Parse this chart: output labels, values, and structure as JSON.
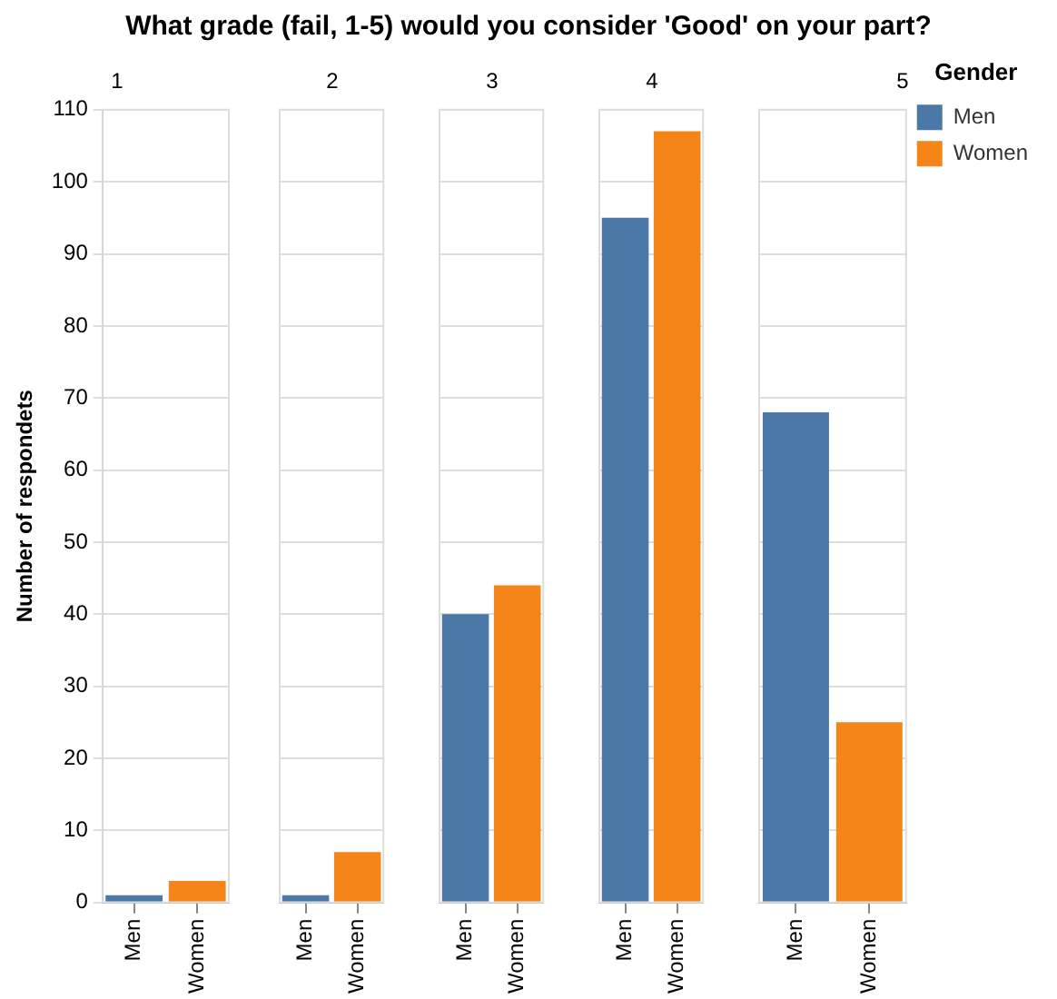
{
  "chart_data": [
    {
      "type": "bar",
      "title": "What grade (fail, 1-5) would you consider 'Good' on your part?",
      "subtitle": "1",
      "ylabel": "Number of respondets",
      "categories": [
        "Men",
        "Women"
      ],
      "series": [
        {
          "color": "#4c78a8",
          "values": [
            1,
            null
          ]
        },
        {
          "color": "#f58518",
          "values": [
            null,
            3
          ]
        }
      ],
      "ylim": [
        0,
        110
      ],
      "yticks": [
        0,
        10,
        20,
        30,
        40,
        50,
        60,
        70,
        80,
        90,
        100,
        110
      ],
      "grid": "y",
      "legend": false
    },
    {
      "type": "bar",
      "subtitle": "2",
      "categories": [
        "Men",
        "Women"
      ],
      "series": [
        {
          "color": "#4c78a8",
          "values": [
            1,
            null
          ]
        },
        {
          "color": "#f58518",
          "values": [
            null,
            7
          ]
        }
      ],
      "ylim": [
        0,
        110
      ],
      "yticks": [
        0,
        10,
        20,
        30,
        40,
        50,
        60,
        70,
        80,
        90,
        100,
        110
      ],
      "grid": "y",
      "legend": false,
      "tick_labels": "x"
    },
    {
      "type": "bar",
      "subtitle": "3",
      "categories": [
        "Men",
        "Women"
      ],
      "series": [
        {
          "color": "#4c78a8",
          "values": [
            40,
            null
          ]
        },
        {
          "color": "#f58518",
          "values": [
            null,
            44
          ]
        }
      ],
      "ylim": [
        0,
        110
      ],
      "yticks": [
        0,
        10,
        20,
        30,
        40,
        50,
        60,
        70,
        80,
        90,
        100,
        110
      ],
      "grid": "y",
      "legend": false,
      "tick_labels": "x"
    },
    {
      "type": "bar",
      "subtitle": "4",
      "categories": [
        "Men",
        "Women"
      ],
      "series": [
        {
          "color": "#4c78a8",
          "values": [
            95,
            null
          ]
        },
        {
          "color": "#f58518",
          "values": [
            null,
            107
          ]
        }
      ],
      "ylim": [
        0,
        110
      ],
      "yticks": [
        0,
        10,
        20,
        30,
        40,
        50,
        60,
        70,
        80,
        90,
        100,
        110
      ],
      "grid": "y",
      "legend": false,
      "tick_labels": "x"
    },
    {
      "type": "bar",
      "subtitle": "5",
      "categories": [
        "Men",
        "Women"
      ],
      "legend_title": "Gender",
      "series": [
        {
          "name": "Men",
          "color": "#4c78a8",
          "values": [
            68,
            null
          ]
        },
        {
          "name": "Women",
          "color": "#f58518",
          "values": [
            null,
            25
          ]
        }
      ],
      "ylim": [
        0,
        110
      ],
      "yticks": [
        0,
        10,
        20,
        30,
        40,
        50,
        60,
        70,
        80,
        90,
        100,
        110
      ],
      "grid": "y",
      "legend": "top right",
      "tick_labels": "x"
    }
  ]
}
